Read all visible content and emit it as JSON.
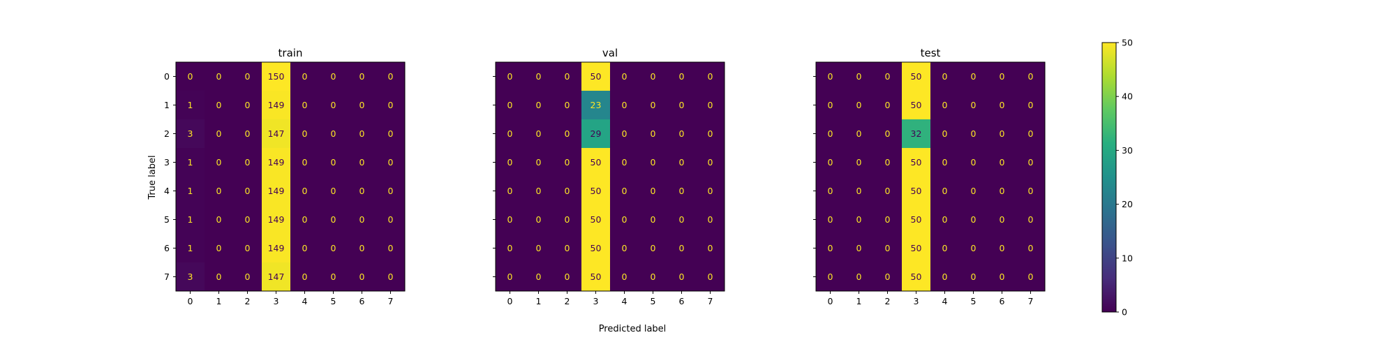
{
  "chart_data": {
    "type": "heatmap",
    "colormap": "viridis",
    "xlabel": "Predicted label",
    "ylabel": "True label",
    "row_labels": [
      "0",
      "1",
      "2",
      "3",
      "4",
      "5",
      "6",
      "7"
    ],
    "col_labels": [
      "0",
      "1",
      "2",
      "3",
      "4",
      "5",
      "6",
      "7"
    ],
    "colorbar": {
      "min": 0,
      "max": 50,
      "ticks": [
        "0",
        "10",
        "20",
        "30",
        "40",
        "50"
      ]
    },
    "panels": [
      {
        "title": "train",
        "matrix": [
          [
            0,
            0,
            0,
            150,
            0,
            0,
            0,
            0
          ],
          [
            1,
            0,
            0,
            149,
            0,
            0,
            0,
            0
          ],
          [
            3,
            0,
            0,
            147,
            0,
            0,
            0,
            0
          ],
          [
            1,
            0,
            0,
            149,
            0,
            0,
            0,
            0
          ],
          [
            1,
            0,
            0,
            149,
            0,
            0,
            0,
            0
          ],
          [
            1,
            0,
            0,
            149,
            0,
            0,
            0,
            0
          ],
          [
            1,
            0,
            0,
            149,
            0,
            0,
            0,
            0
          ],
          [
            3,
            0,
            0,
            147,
            0,
            0,
            0,
            0
          ]
        ]
      },
      {
        "title": "val",
        "matrix": [
          [
            0,
            0,
            0,
            50,
            0,
            0,
            0,
            0
          ],
          [
            0,
            0,
            0,
            23,
            0,
            0,
            0,
            0
          ],
          [
            0,
            0,
            0,
            29,
            0,
            0,
            0,
            0
          ],
          [
            0,
            0,
            0,
            50,
            0,
            0,
            0,
            0
          ],
          [
            0,
            0,
            0,
            50,
            0,
            0,
            0,
            0
          ],
          [
            0,
            0,
            0,
            50,
            0,
            0,
            0,
            0
          ],
          [
            0,
            0,
            0,
            50,
            0,
            0,
            0,
            0
          ],
          [
            0,
            0,
            0,
            50,
            0,
            0,
            0,
            0
          ]
        ]
      },
      {
        "title": "test",
        "matrix": [
          [
            0,
            0,
            0,
            50,
            0,
            0,
            0,
            0
          ],
          [
            0,
            0,
            0,
            50,
            0,
            0,
            0,
            0
          ],
          [
            0,
            0,
            0,
            32,
            0,
            0,
            0,
            0
          ],
          [
            0,
            0,
            0,
            50,
            0,
            0,
            0,
            0
          ],
          [
            0,
            0,
            0,
            50,
            0,
            0,
            0,
            0
          ],
          [
            0,
            0,
            0,
            50,
            0,
            0,
            0,
            0
          ],
          [
            0,
            0,
            0,
            50,
            0,
            0,
            0,
            0
          ],
          [
            0,
            0,
            0,
            50,
            0,
            0,
            0,
            0
          ]
        ]
      }
    ]
  }
}
